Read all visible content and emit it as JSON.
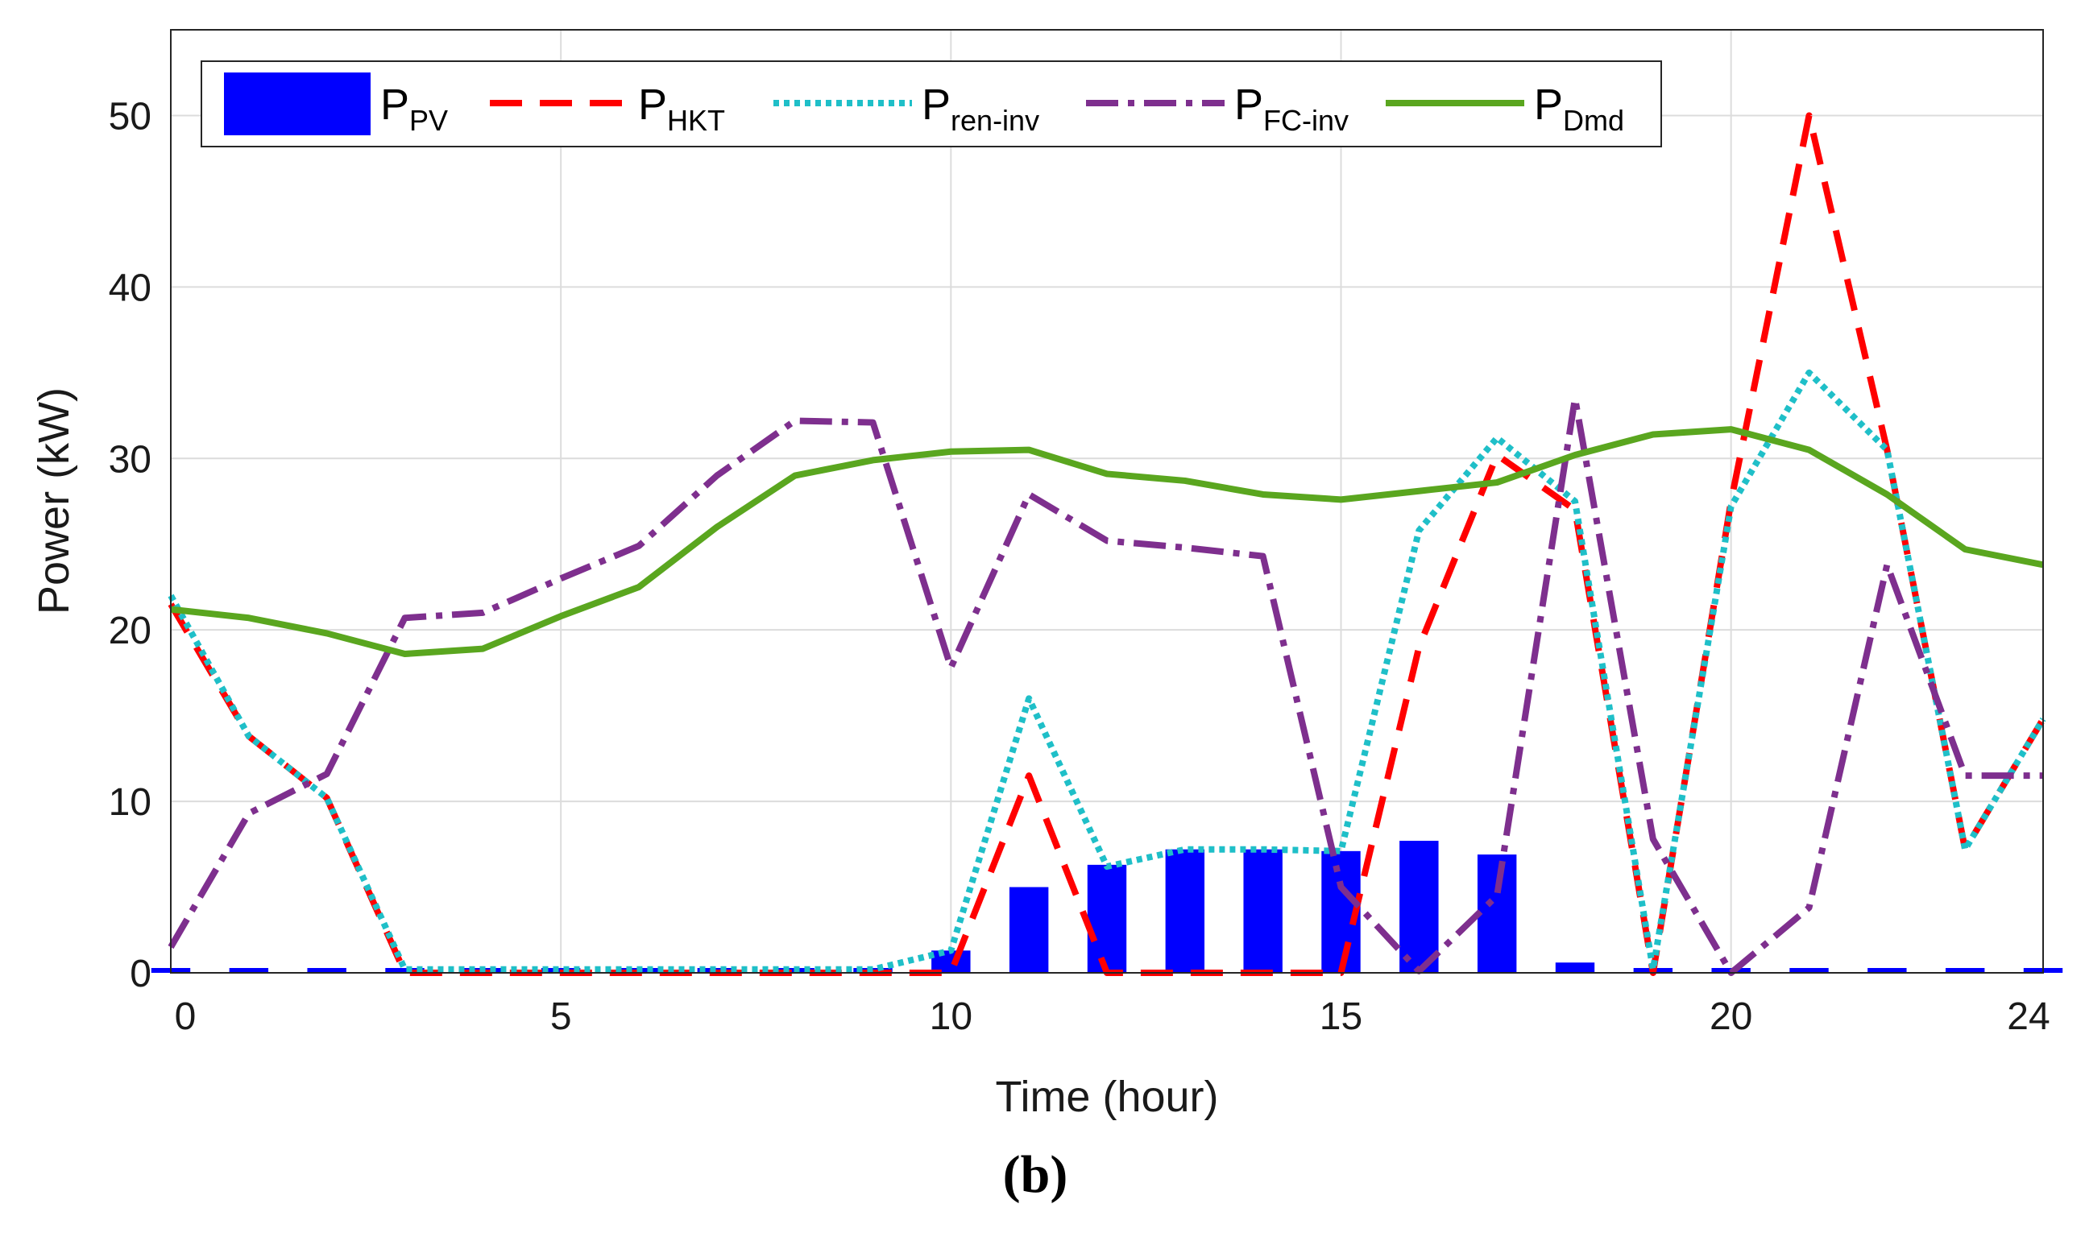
{
  "chart_data": {
    "type": "bar+line",
    "title": "",
    "caption": "(b)",
    "xlabel": "Time (hour)",
    "ylabel": "Power (kW)",
    "xlim": [
      0,
      24
    ],
    "ylim": [
      0,
      55
    ],
    "xticks": [
      0,
      5,
      10,
      15,
      20,
      24
    ],
    "yticks": [
      0,
      10,
      20,
      30,
      40,
      50
    ],
    "grid": true,
    "legend_position": "top (inside, horizontal)",
    "x": [
      0,
      1,
      2,
      3,
      4,
      5,
      6,
      7,
      8,
      9,
      10,
      11,
      12,
      13,
      14,
      15,
      16,
      17,
      18,
      19,
      20,
      21,
      22,
      23,
      24
    ],
    "series": [
      {
        "name": "P_PV",
        "label_main": "P",
        "label_sub": "PV",
        "kind": "bar",
        "color": "#0000ff",
        "values": [
          0,
          0,
          0,
          0,
          0,
          0,
          0,
          0,
          0,
          0,
          1.3,
          5,
          6.3,
          7.2,
          7.2,
          7.1,
          7.7,
          6.9,
          0.6,
          0,
          0,
          0,
          0,
          0,
          0
        ]
      },
      {
        "name": "P_HKT",
        "label_main": "P",
        "label_sub": "HKT",
        "kind": "line",
        "style": "dashed",
        "color": "#ff0000",
        "values": [
          21.5,
          13.8,
          10.2,
          0,
          0,
          0,
          0,
          0,
          0,
          0,
          0,
          11.5,
          0,
          0,
          0,
          0,
          19,
          30.2,
          27,
          0,
          27.5,
          50,
          30.5,
          7.2,
          14.8
        ]
      },
      {
        "name": "P_ren-inv",
        "label_main": "P",
        "label_sub": "ren-inv",
        "kind": "line",
        "style": "dotted",
        "color": "#1fbfc8",
        "values": [
          22,
          13.8,
          10.2,
          0.2,
          0.2,
          0.2,
          0.2,
          0.2,
          0.2,
          0.2,
          1.3,
          16,
          6.2,
          7.2,
          7.2,
          7.1,
          25.8,
          31.2,
          27.5,
          0.2,
          27.2,
          35,
          30.5,
          7.2,
          14.8
        ]
      },
      {
        "name": "P_FC-inv",
        "label_main": "P",
        "label_sub": "FC-inv",
        "kind": "line",
        "style": "dashdot",
        "color": "#7e2f8e",
        "values": [
          1.5,
          9.3,
          11.6,
          20.7,
          21,
          23,
          24.9,
          29,
          32.2,
          32.1,
          17.8,
          27.9,
          25.2,
          24.8,
          24.3,
          5,
          0.1,
          4.5,
          33.5,
          7.8,
          0,
          3.8,
          23.8,
          11.5,
          11.5
        ]
      },
      {
        "name": "P_Dmd",
        "label_main": "P",
        "label_sub": "Dmd",
        "kind": "line",
        "style": "solid",
        "color": "#5aa61f",
        "values": [
          21.2,
          20.7,
          19.8,
          18.6,
          18.9,
          20.8,
          22.5,
          26,
          29,
          29.9,
          30.4,
          30.5,
          29.1,
          28.7,
          27.9,
          27.6,
          28.1,
          28.6,
          30.2,
          31.4,
          31.7,
          30.5,
          27.9,
          24.7,
          23.8
        ]
      }
    ]
  }
}
